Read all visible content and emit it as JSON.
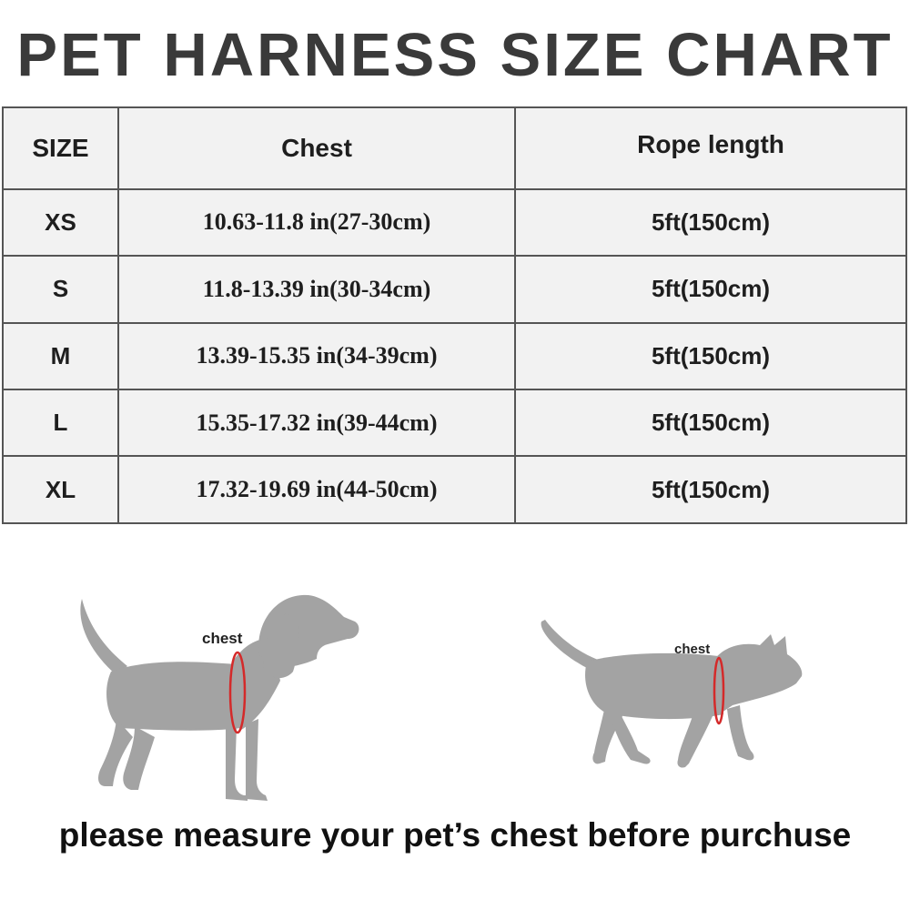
{
  "title": "PET HARNESS SIZE CHART",
  "table": {
    "headers": [
      "SIZE",
      "Chest",
      "Rope length"
    ],
    "rows": [
      {
        "size": "XS",
        "chest": "10.63-11.8 in(27-30cm)",
        "rope": "5ft(150cm)"
      },
      {
        "size": "S",
        "chest": "11.8-13.39 in(30-34cm)",
        "rope": "5ft(150cm)"
      },
      {
        "size": "M",
        "chest": "13.39-15.35 in(34-39cm)",
        "rope": "5ft(150cm)"
      },
      {
        "size": "L",
        "chest": "15.35-17.32 in(39-44cm)",
        "rope": "5ft(150cm)"
      },
      {
        "size": "XL",
        "chest": "17.32-19.69 in(44-50cm)",
        "rope": "5ft(150cm)"
      }
    ]
  },
  "illustrations": {
    "dog_label": "chest",
    "cat_label": "chest",
    "silhouette_color": "#a3a3a3",
    "measure_line_color": "#d42a2a"
  },
  "footer": "please measure your pet’s chest before purchuse"
}
